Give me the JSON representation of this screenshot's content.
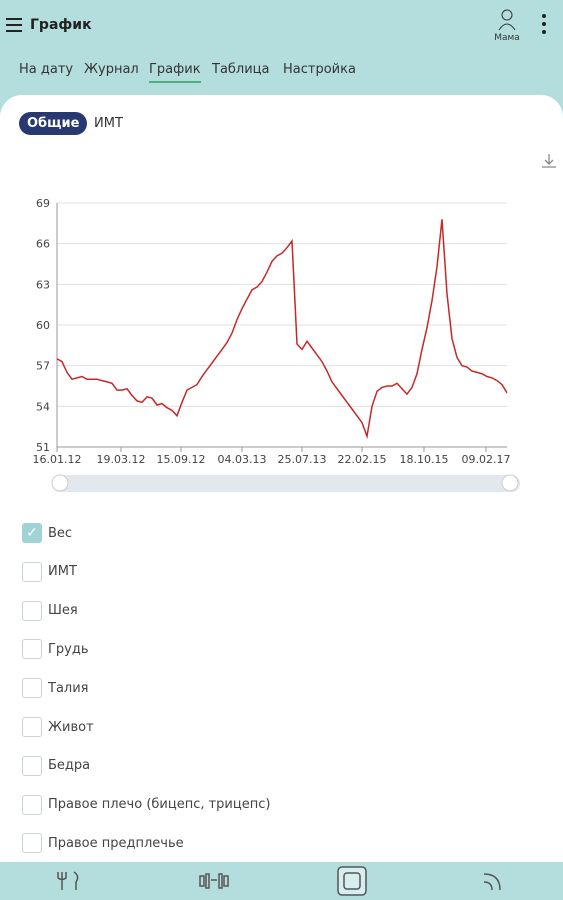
{
  "header": {
    "title": "График",
    "user": "Мама"
  },
  "tabs": [
    {
      "label": "На дату",
      "active": false
    },
    {
      "label": "Журнал",
      "active": false
    },
    {
      "label": "График",
      "active": true
    },
    {
      "label": "Таблица",
      "active": false
    },
    {
      "label": "Настройка",
      "active": false
    }
  ],
  "chips": [
    {
      "label": "Общие",
      "active": true
    },
    {
      "label": "ИМТ",
      "active": false
    }
  ],
  "chart_data": {
    "type": "line",
    "color": "#c62828",
    "grid": true,
    "values": [
      57.5,
      57.3,
      56.5,
      56,
      56.1,
      56.2,
      56,
      56,
      56,
      55.9,
      55.8,
      55.7,
      55.2,
      55.2,
      55.3,
      54.8,
      54.4,
      54.3,
      54.7,
      54.6,
      54.1,
      54.2,
      53.9,
      53.7,
      53.3,
      54.3,
      55.2,
      55.4,
      55.6,
      56.2,
      56.7,
      57.2,
      57.7,
      58.2,
      58.7,
      59.4,
      60.4,
      61.2,
      61.9,
      62.6,
      62.8,
      63.2,
      63.9,
      64.7,
      65.1,
      65.3,
      65.7,
      66.2,
      58.6,
      58.2,
      58.8,
      58.3,
      57.8,
      57.3,
      56.6,
      55.8,
      55.3,
      54.8,
      54.3,
      53.8,
      53.3,
      52.8,
      51.8,
      54,
      55.1,
      55.4,
      55.5,
      55.5,
      55.7,
      55.3,
      54.9,
      55.4,
      56.4,
      58.2,
      59.8,
      61.8,
      64.3,
      67.8,
      62.3,
      59,
      57.6,
      57,
      56.9,
      56.6,
      56.5,
      56.4,
      56.2,
      56.1,
      55.9,
      55.6,
      55
    ],
    "xlim": [
      0,
      90
    ],
    "xticks": [
      {
        "value": 0,
        "label": "16.01.12"
      },
      {
        "value": 12.8,
        "label": "19.03.12"
      },
      {
        "value": 24.8,
        "label": "15.09.12"
      },
      {
        "value": 37,
        "label": "04.03.13"
      },
      {
        "value": 49,
        "label": "25.07.13"
      },
      {
        "value": 61,
        "label": "22.02.15"
      },
      {
        "value": 73.4,
        "label": "18.10.15"
      },
      {
        "value": 85.8,
        "label": "09.02.17"
      }
    ],
    "ylim": [
      51,
      69
    ],
    "yticks": [
      51,
      54,
      57,
      60,
      63,
      66,
      69
    ]
  },
  "checkboxes": [
    {
      "label": "Вес",
      "checked": true
    },
    {
      "label": "ИМТ",
      "checked": false
    },
    {
      "label": "Шея",
      "checked": false
    },
    {
      "label": "Грудь",
      "checked": false
    },
    {
      "label": "Талия",
      "checked": false
    },
    {
      "label": "Живот",
      "checked": false
    },
    {
      "label": "Бедра",
      "checked": false
    },
    {
      "label": "Правое плечо (бицепс, трицепс)",
      "checked": false
    },
    {
      "label": "Правое предплечье",
      "checked": false
    }
  ]
}
